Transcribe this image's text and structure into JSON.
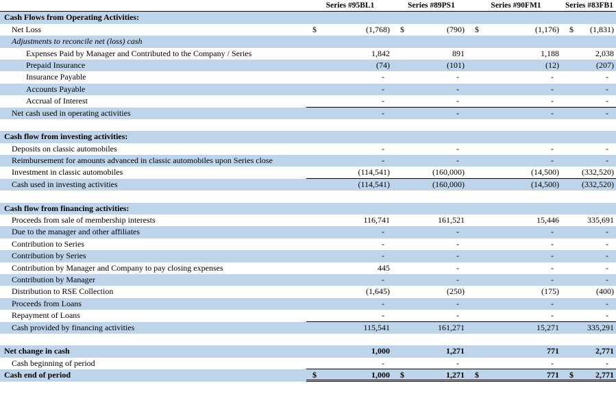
{
  "document": {
    "kind": "cash-flow-statement"
  },
  "colors": {
    "stripe": "#BDD4EA",
    "border": "#000000",
    "background": "#FFFFFF",
    "text": "#000000"
  },
  "columns": [
    "Series #95BL1",
    "Series #89PS1",
    "Series #90FM1",
    "Series #83FB1"
  ],
  "table": {
    "rows": [
      {
        "label": "Cash Flows from Operating Activities:",
        "indent": 0,
        "bold": true,
        "shade": true,
        "values": null
      },
      {
        "label": "Net Loss",
        "indent": 1,
        "shade": false,
        "dollar": true,
        "values": [
          "(1,768)",
          "(790)",
          "(1,176)",
          "(1,831)"
        ]
      },
      {
        "label": "Adjustments to reconcile net (loss) cash",
        "indent": 1,
        "italic": true,
        "shade": true,
        "values": null
      },
      {
        "label": "Expenses Paid by Manager and Contributed to the Company / Series",
        "indent": 2,
        "shade": false,
        "values": [
          "1,842",
          "891",
          "1,188",
          "2,038"
        ]
      },
      {
        "label": "Prepaid Insurance",
        "indent": 2,
        "shade": true,
        "values": [
          "(74)",
          "(101)",
          "(12)",
          "(207)"
        ]
      },
      {
        "label": "Insurance Payable",
        "indent": 2,
        "shade": false,
        "values": [
          "-",
          "-",
          "-",
          "-"
        ]
      },
      {
        "label": "Accounts Payable",
        "indent": 2,
        "shade": true,
        "values": [
          "-",
          "-",
          "-",
          "-"
        ]
      },
      {
        "label": "Accrual of Interest",
        "indent": 2,
        "shade": false,
        "values": [
          "-",
          "-",
          "-",
          "-"
        ],
        "vborder": "single"
      },
      {
        "label": "Net cash used in operating activities",
        "indent": 1,
        "shade": true,
        "values": [
          "-",
          "-",
          "-",
          "-"
        ]
      },
      {
        "spacer": true
      },
      {
        "label": "Cash flow from investing activities:",
        "indent": 0,
        "bold": true,
        "shade": true,
        "values": null
      },
      {
        "label": "Deposits on classic automobiles",
        "indent": 1,
        "shade": false,
        "values": [
          "-",
          "-",
          "-",
          "-"
        ]
      },
      {
        "label": "Reimbursement for amounts advanced in classic automobiles upon Series close",
        "indent": 1,
        "shade": true,
        "values": [
          "-",
          "-",
          "-",
          "-"
        ]
      },
      {
        "label": "Investment in classic automobiles",
        "indent": 1,
        "shade": false,
        "values": [
          "(114,541)",
          "(160,000)",
          "(14,500)",
          "(332,520)"
        ],
        "vborder": "single"
      },
      {
        "label": "Cash used in investing activities",
        "indent": 1,
        "shade": true,
        "values": [
          "(114,541)",
          "(160,000)",
          "(14,500)",
          "(332,520)"
        ]
      },
      {
        "spacer": true
      },
      {
        "label": "Cash flow from financing activities:",
        "indent": 0,
        "bold": true,
        "shade": true,
        "values": null
      },
      {
        "label": "Proceeds from sale of membership interests",
        "indent": 1,
        "shade": false,
        "values": [
          "116,741",
          "161,521",
          "15,446",
          "335,691"
        ]
      },
      {
        "label": "Due to the manager and other affiliates",
        "indent": 1,
        "shade": true,
        "values": [
          "-",
          "-",
          "-",
          "-"
        ]
      },
      {
        "label": "Contribution to Series",
        "indent": 1,
        "shade": false,
        "values": [
          "-",
          "-",
          "-",
          "-"
        ]
      },
      {
        "label": "Contribution by Series",
        "indent": 1,
        "shade": true,
        "values": [
          "-",
          "-",
          "-",
          "-"
        ]
      },
      {
        "label": "Contribution by Manager and Company to pay closing expenses",
        "indent": 1,
        "shade": false,
        "values": [
          "445",
          "-",
          "-",
          "-"
        ]
      },
      {
        "label": "Contribution by Manager",
        "indent": 1,
        "shade": true,
        "values": [
          "-",
          "-",
          "-",
          "-"
        ]
      },
      {
        "label": "Distribution to RSE Collection",
        "indent": 1,
        "shade": false,
        "values": [
          "(1,645)",
          "(250)",
          "(175)",
          "(400)"
        ]
      },
      {
        "label": "Proceeds from Loans",
        "indent": 1,
        "shade": true,
        "values": [
          "-",
          "-",
          "-",
          "-"
        ]
      },
      {
        "label": "Repayment of Loans",
        "indent": 1,
        "shade": false,
        "values": [
          "-",
          "-",
          "-",
          "-"
        ],
        "vborder": "single"
      },
      {
        "label": "Cash provided by financing activities",
        "indent": 1,
        "shade": true,
        "values": [
          "115,541",
          "161,271",
          "15,271",
          "335,291"
        ]
      },
      {
        "spacer": true
      },
      {
        "label": "Net change in cash",
        "indent": 0,
        "bold": true,
        "shade": true,
        "bold_values": true,
        "values": [
          "1,000",
          "1,271",
          "771",
          "2,771"
        ]
      },
      {
        "label": "Cash beginning of period",
        "indent": 1,
        "shade": false,
        "values": [
          "-",
          "-",
          "-",
          "-"
        ],
        "vborder": "single"
      },
      {
        "label": "Cash end of period",
        "indent": 0,
        "bold": true,
        "shade": true,
        "dollar": true,
        "bold_values": true,
        "values": [
          "1,000",
          "1,271",
          "771",
          "2,771"
        ],
        "vborder": "double"
      }
    ]
  }
}
